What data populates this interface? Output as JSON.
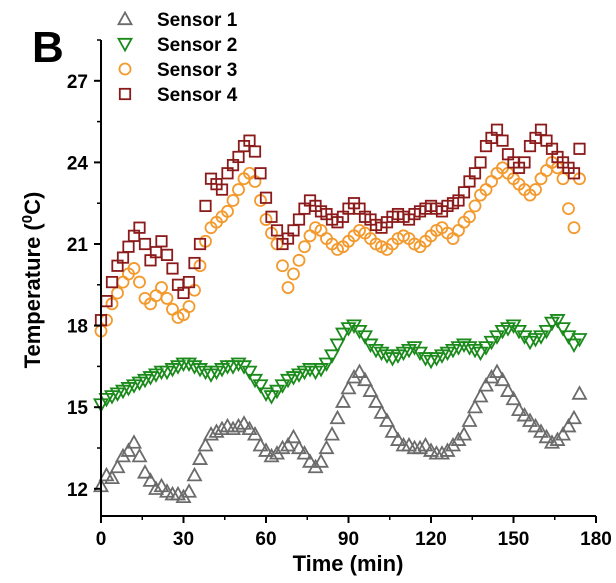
{
  "panel_label": "B",
  "chart_data": {
    "type": "scatter",
    "xlabel": "Time (min)",
    "ylabel_main": "Temperature (",
    "ylabel_sup": "0",
    "ylabel_unit": "C)",
    "xlim": [
      0,
      180
    ],
    "ylim": [
      11,
      28.5
    ],
    "xticks": [
      0,
      30,
      60,
      90,
      120,
      150,
      180
    ],
    "yticks": [
      12,
      15,
      18,
      21,
      24,
      27
    ],
    "grid": false,
    "legend_position": "top-left",
    "series": [
      {
        "name": "Sensor 1",
        "marker": "triangle-up",
        "color": "#6b6b6b",
        "x": [
          0,
          2,
          4,
          6,
          8,
          10,
          12,
          14,
          16,
          18,
          20,
          22,
          24,
          26,
          28,
          30,
          32,
          34,
          36,
          38,
          40,
          42,
          44,
          46,
          48,
          50,
          52,
          54,
          56,
          58,
          60,
          62,
          64,
          66,
          68,
          70,
          72,
          74,
          76,
          78,
          80,
          82,
          84,
          86,
          88,
          90,
          92,
          94,
          96,
          98,
          100,
          102,
          104,
          106,
          108,
          110,
          112,
          114,
          116,
          118,
          120,
          122,
          124,
          126,
          128,
          130,
          132,
          134,
          136,
          138,
          140,
          142,
          144,
          146,
          148,
          150,
          152,
          154,
          156,
          158,
          160,
          162,
          164,
          166,
          168,
          170,
          172,
          174
        ],
        "y": [
          12.1,
          12.5,
          12.4,
          12.8,
          13.2,
          13.4,
          13.7,
          13.2,
          12.6,
          12.3,
          12.0,
          12.1,
          11.9,
          11.8,
          11.8,
          11.7,
          11.9,
          12.5,
          13.1,
          13.6,
          14.0,
          14.1,
          14.2,
          14.3,
          14.2,
          14.3,
          14.4,
          14.2,
          14.0,
          13.6,
          13.4,
          13.2,
          13.3,
          13.5,
          13.6,
          13.9,
          13.5,
          13.3,
          13.0,
          12.8,
          13.0,
          13.5,
          14.0,
          14.6,
          15.2,
          15.7,
          16.1,
          16.3,
          16.0,
          15.6,
          15.2,
          14.8,
          14.5,
          14.1,
          13.8,
          13.6,
          13.6,
          13.5,
          13.5,
          13.6,
          13.4,
          13.3,
          13.3,
          13.4,
          13.6,
          13.8,
          14.0,
          14.5,
          15.0,
          15.4,
          15.8,
          16.1,
          16.3,
          16.0,
          15.6,
          15.3,
          14.9,
          14.7,
          14.5,
          14.3,
          14.1,
          13.9,
          13.7,
          13.8,
          14.0,
          14.3,
          14.6,
          15.5
        ]
      },
      {
        "name": "Sensor 2",
        "marker": "triangle-down",
        "color": "#1a8a1a",
        "x": [
          0,
          2,
          4,
          6,
          8,
          10,
          12,
          14,
          16,
          18,
          20,
          22,
          24,
          26,
          28,
          30,
          32,
          34,
          36,
          38,
          40,
          42,
          44,
          46,
          48,
          50,
          52,
          54,
          56,
          58,
          60,
          62,
          64,
          66,
          68,
          70,
          72,
          74,
          76,
          78,
          80,
          82,
          84,
          86,
          88,
          90,
          92,
          94,
          96,
          98,
          100,
          102,
          104,
          106,
          108,
          110,
          112,
          114,
          116,
          118,
          120,
          122,
          124,
          126,
          128,
          130,
          132,
          134,
          136,
          138,
          140,
          142,
          144,
          146,
          148,
          150,
          152,
          154,
          156,
          158,
          160,
          162,
          164,
          166,
          168,
          170,
          172,
          174
        ],
        "y": [
          15.1,
          15.3,
          15.4,
          15.5,
          15.6,
          15.7,
          15.8,
          15.9,
          16.0,
          16.1,
          16.2,
          16.3,
          16.3,
          16.4,
          16.5,
          16.6,
          16.6,
          16.5,
          16.4,
          16.3,
          16.2,
          16.3,
          16.4,
          16.5,
          16.5,
          16.6,
          16.5,
          16.3,
          16.0,
          15.8,
          15.5,
          15.4,
          15.6,
          15.8,
          16.0,
          16.1,
          16.2,
          16.3,
          16.4,
          16.3,
          16.4,
          16.6,
          16.9,
          17.3,
          17.7,
          17.9,
          18.0,
          17.8,
          17.6,
          17.3,
          17.1,
          17.0,
          16.9,
          16.8,
          16.9,
          17.0,
          17.1,
          17.2,
          17.0,
          16.8,
          16.7,
          16.8,
          16.9,
          17.0,
          17.1,
          17.2,
          17.3,
          17.2,
          17.1,
          17.0,
          17.2,
          17.4,
          17.6,
          17.8,
          17.9,
          18.0,
          17.8,
          17.6,
          17.4,
          17.5,
          17.6,
          17.8,
          18.1,
          18.2,
          17.9,
          17.6,
          17.3,
          17.5
        ]
      },
      {
        "name": "Sensor 3",
        "marker": "circle",
        "color": "#f39a2e",
        "x": [
          0,
          2,
          4,
          6,
          8,
          10,
          12,
          14,
          16,
          18,
          20,
          22,
          24,
          26,
          28,
          30,
          32,
          34,
          36,
          38,
          40,
          42,
          44,
          46,
          48,
          50,
          52,
          54,
          56,
          58,
          60,
          62,
          64,
          66,
          68,
          70,
          72,
          74,
          76,
          78,
          80,
          82,
          84,
          86,
          88,
          90,
          92,
          94,
          96,
          98,
          100,
          102,
          104,
          106,
          108,
          110,
          112,
          114,
          116,
          118,
          120,
          122,
          124,
          126,
          128,
          130,
          132,
          134,
          136,
          138,
          140,
          142,
          144,
          146,
          148,
          150,
          152,
          154,
          156,
          158,
          160,
          162,
          164,
          166,
          168,
          170,
          172,
          174
        ],
        "y": [
          17.8,
          18.2,
          18.8,
          19.2,
          19.6,
          19.9,
          20.1,
          19.6,
          19.0,
          18.8,
          19.1,
          19.4,
          19.0,
          18.6,
          18.3,
          18.4,
          18.7,
          19.3,
          20.2,
          21.1,
          21.6,
          21.8,
          22.0,
          22.2,
          22.6,
          23.0,
          23.4,
          23.6,
          23.3,
          22.6,
          21.9,
          21.4,
          21.0,
          20.2,
          19.4,
          19.9,
          20.4,
          20.9,
          21.3,
          21.6,
          21.5,
          21.2,
          21.0,
          20.8,
          20.9,
          21.1,
          21.3,
          21.5,
          21.4,
          21.2,
          21.0,
          20.9,
          20.8,
          21.0,
          21.2,
          21.3,
          21.2,
          21.0,
          20.9,
          21.1,
          21.3,
          21.5,
          21.6,
          21.4,
          21.2,
          21.5,
          21.8,
          22.0,
          22.4,
          22.8,
          23.0,
          23.3,
          23.6,
          23.8,
          23.6,
          23.4,
          23.2,
          23.0,
          22.8,
          23.0,
          23.4,
          23.7,
          24.0,
          23.8,
          23.4,
          22.3,
          21.6,
          23.4
        ]
      },
      {
        "name": "Sensor 4",
        "marker": "square",
        "color": "#8b1a1a",
        "x": [
          0,
          2,
          4,
          6,
          8,
          10,
          12,
          14,
          16,
          18,
          20,
          22,
          24,
          26,
          28,
          30,
          32,
          34,
          36,
          38,
          40,
          42,
          44,
          46,
          48,
          50,
          52,
          54,
          56,
          58,
          60,
          62,
          64,
          66,
          68,
          70,
          72,
          74,
          76,
          78,
          80,
          82,
          84,
          86,
          88,
          90,
          92,
          94,
          96,
          98,
          100,
          102,
          104,
          106,
          108,
          110,
          112,
          114,
          116,
          118,
          120,
          122,
          124,
          126,
          128,
          130,
          132,
          134,
          136,
          138,
          140,
          142,
          144,
          146,
          148,
          150,
          152,
          154,
          156,
          158,
          160,
          162,
          164,
          166,
          168,
          170,
          172,
          174
        ],
        "y": [
          18.2,
          18.9,
          19.6,
          20.2,
          20.5,
          20.9,
          21.3,
          21.6,
          21.0,
          20.4,
          20.7,
          21.1,
          20.6,
          20.1,
          19.5,
          19.2,
          19.6,
          20.3,
          21.0,
          22.4,
          23.4,
          23.2,
          23.0,
          23.6,
          23.9,
          24.2,
          24.6,
          24.8,
          24.4,
          23.6,
          22.7,
          22.0,
          21.5,
          21.0,
          21.2,
          21.5,
          21.9,
          22.3,
          22.6,
          22.4,
          22.2,
          22.1,
          21.9,
          21.8,
          22.0,
          22.3,
          22.5,
          22.3,
          22.0,
          21.9,
          21.7,
          21.6,
          21.8,
          22.0,
          22.1,
          22.0,
          21.9,
          22.1,
          22.2,
          22.3,
          22.4,
          22.3,
          22.2,
          22.4,
          22.5,
          22.6,
          22.9,
          23.3,
          23.6,
          24.0,
          24.6,
          24.9,
          25.2,
          24.8,
          24.3,
          24.0,
          23.8,
          24.0,
          24.6,
          24.9,
          25.2,
          24.8,
          24.5,
          24.2,
          24.0,
          23.8,
          23.6,
          24.5
        ]
      }
    ]
  }
}
